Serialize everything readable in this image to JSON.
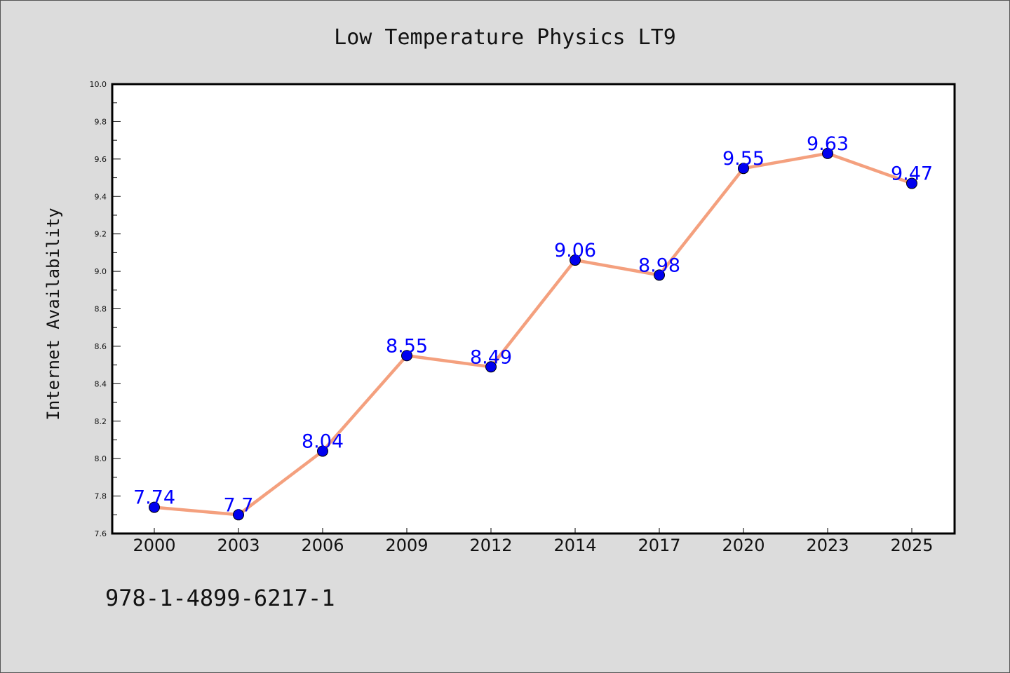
{
  "chart_data": {
    "type": "line",
    "title": "Low Temperature Physics LT9",
    "xlabel": "",
    "ylabel": "Internet Availability",
    "categories": [
      "2000",
      "2003",
      "2006",
      "2009",
      "2012",
      "2014",
      "2017",
      "2020",
      "2023",
      "2025"
    ],
    "series": [
      {
        "values": [
          7.74,
          7.7,
          8.04,
          8.55,
          8.49,
          9.06,
          8.98,
          9.55,
          9.63,
          9.47
        ],
        "labels": [
          "7.74",
          "7.7",
          "8.04",
          "8.55",
          "8.49",
          "9.06",
          "8.98",
          "9.55",
          "9.63",
          "9.47"
        ],
        "line_color": "#f4a07e",
        "marker_color": "#0000ee"
      }
    ],
    "ylim": [
      7.6,
      10.0
    ],
    "yticks": [
      "7.6",
      "7.8",
      "8.0",
      "8.2",
      "8.4",
      "8.6",
      "8.8",
      "9.0",
      "9.2",
      "9.4",
      "9.6",
      "9.8",
      "10.0"
    ],
    "ytick_values": [
      7.6,
      7.8,
      8.0,
      8.2,
      8.4,
      8.6,
      8.8,
      9.0,
      9.2,
      9.4,
      9.6,
      9.8,
      10.0
    ],
    "grid": false,
    "label_color": "#0000ff"
  },
  "footer": {
    "isbn": "978-1-4899-6217-1"
  },
  "colors": {
    "page_background": "#dcdcdc",
    "plot_background": "#ffffff"
  }
}
